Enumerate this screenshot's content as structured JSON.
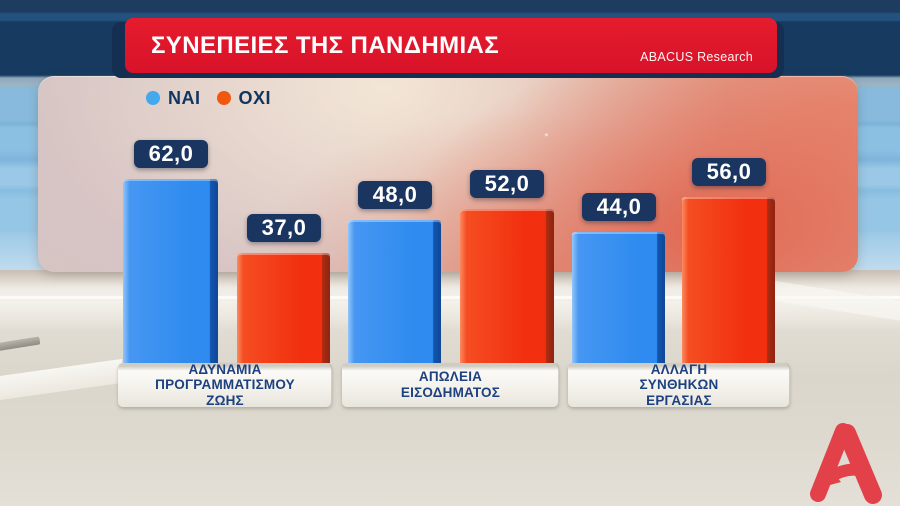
{
  "header": {
    "title": "ΣΥΝΕΠΕΙΕΣ ΤΗΣ ΠΑΝΔΗΜΙΑΣ",
    "source": "ABACUS Research"
  },
  "legend": {
    "items": [
      {
        "key": "nai",
        "label": "ΝΑΙ",
        "color": "#45a7ee"
      },
      {
        "key": "oxi",
        "label": "ΟΧΙ",
        "color": "#f2570f"
      }
    ]
  },
  "chart_data": {
    "type": "bar",
    "title": "ΣΥΝΕΠΕΙΕΣ ΤΗΣ ΠΑΝΔΗΜΙΑΣ",
    "source": "ABACUS Research",
    "categories": [
      "ΑΔΥΝΑΜΙΑ ΠΡΟΓΡΑΜΜΑΤΙΣΜΟΥ ΖΩΗΣ",
      "ΑΠΩΛΕΙΑ ΕΙΣΟΔΗΜΑΤΟΣ",
      "ΑΛΛΑΓΗ ΣΥΝΘΗΚΩΝ ΕΡΓΑΣΙΑΣ"
    ],
    "category_lines": [
      [
        "ΑΔΥΝΑΜΙΑ",
        "ΠΡΟΓΡΑΜΜΑΤΙΣΜΟΥ",
        "ΖΩΗΣ"
      ],
      [
        "ΑΠΩΛΕΙΑ",
        "ΕΙΣΟΔΗΜΑΤΟΣ"
      ],
      [
        "ΑΛΛΑΓΗ",
        "ΣΥΝΘΗΚΩΝ",
        "ΕΡΓΑΣΙΑΣ"
      ]
    ],
    "series": [
      {
        "name": "ΝΑΙ",
        "key": "nai",
        "color": "#2f8bef",
        "values": [
          62.0,
          48.0,
          44.0
        ],
        "value_labels": [
          "62,0",
          "48,0",
          "44,0"
        ]
      },
      {
        "name": "ΟΧΙ",
        "key": "oxi",
        "color": "#f22f0e",
        "values": [
          37.0,
          52.0,
          56.0
        ],
        "value_labels": [
          "37,0",
          "52,0",
          "56,0"
        ]
      }
    ],
    "ylim": [
      0,
      100
    ],
    "grid": false,
    "legend_position": "top-left"
  },
  "branding": {
    "logo": "alpha-tv",
    "logo_color": "#e2414a"
  }
}
